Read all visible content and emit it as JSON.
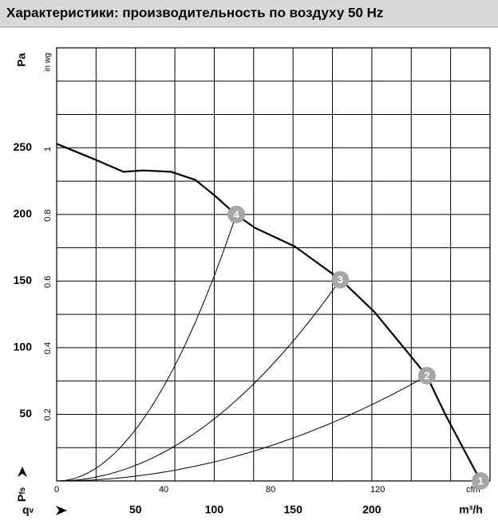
{
  "title": "Характеристики: производительность по воздуху 50 Hz",
  "chart_data": {
    "type": "fan-curve",
    "x_symbol": "q",
    "x_subscript": "v",
    "x_unit": "m³/h",
    "x2_unit": "cfm",
    "y_symbol": "P",
    "y_subscript": "fs",
    "y_unit": "Pa",
    "y2_unit": "in wg",
    "xlim": [
      0,
      275
    ],
    "xticks": [
      50,
      100,
      150,
      200
    ],
    "xgrid": [
      25,
      50,
      75,
      100,
      125,
      150,
      175,
      200,
      225,
      250
    ],
    "x2lim": [
      0,
      162
    ],
    "x2ticks": [
      0,
      40,
      80,
      120
    ],
    "ylim": [
      0,
      325
    ],
    "yticks": [
      50,
      100,
      150,
      200,
      250
    ],
    "ygrid": [
      25,
      50,
      75,
      100,
      125,
      150,
      175,
      200,
      225,
      250,
      275,
      300
    ],
    "y2lim": [
      0,
      1.305
    ],
    "y2ticks": [
      0.2,
      0.4,
      0.6,
      0.8,
      1
    ],
    "series": [
      {
        "color": "#000000",
        "x": [
          0,
          24.7,
          42.4,
          55,
          72.7,
          87.9,
          100.5,
          113.6,
          125.8,
          151,
          180.3,
          201.5,
          221.7,
          234.8,
          247,
          269
        ],
        "values": [
          253,
          241,
          232,
          233,
          232,
          226,
          214,
          200,
          190,
          176,
          151,
          127,
          98,
          79,
          49,
          0
        ]
      }
    ],
    "points": [
      {
        "label": "1",
        "x": 269,
        "y": 0
      },
      {
        "label": "2",
        "x": 235,
        "y": 79
      },
      {
        "label": "3",
        "x": 180,
        "y": 151
      },
      {
        "label": "4",
        "x": 114,
        "y": 200
      }
    ],
    "point_color": "#a6a6a6"
  }
}
